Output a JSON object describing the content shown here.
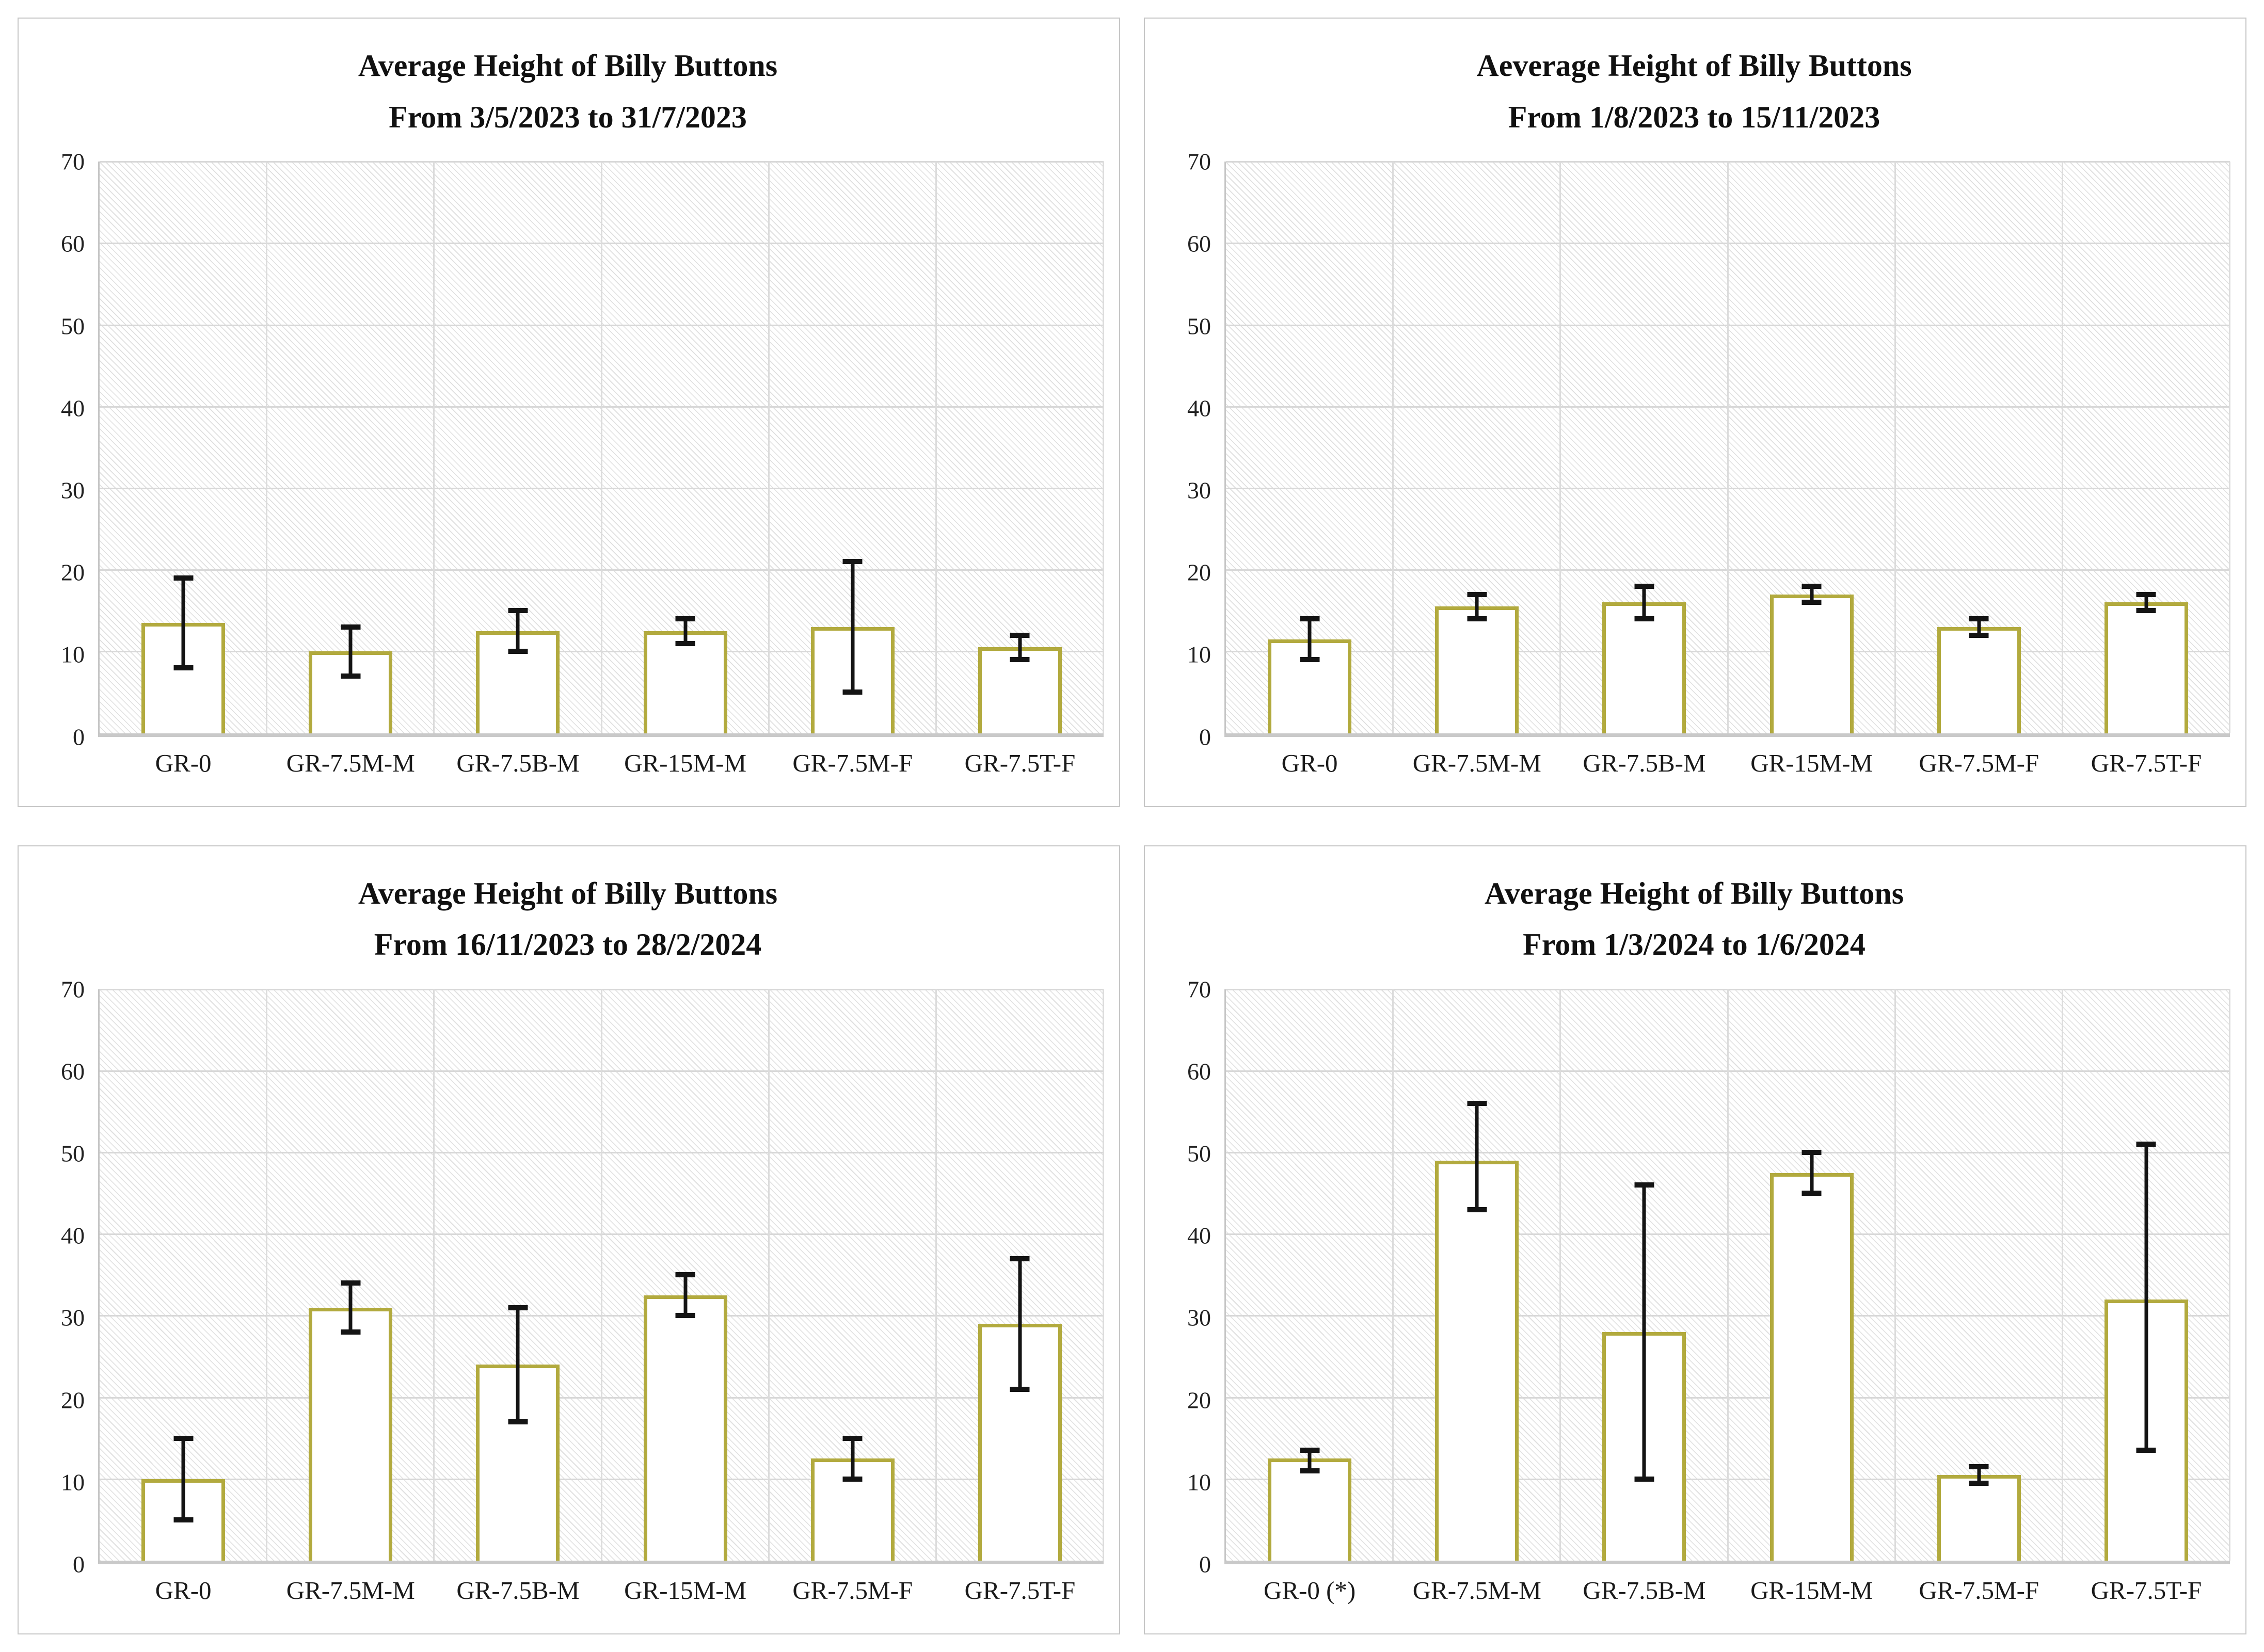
{
  "page": {
    "background": "#ffffff",
    "layout": "2x2-chart-grid"
  },
  "style": {
    "bar_fill": "#ffffff",
    "bar_border": "#b2aa3e",
    "error_bar_color": "#141414",
    "gridline_color": "#d8d8d8",
    "axis_color": "#c9c9c9",
    "panel_border_color": "#c6c6c6",
    "plot_pattern": "light-gray-diagonal-dotted-hatch",
    "text_color": "#161616"
  },
  "chart_data": [
    {
      "type": "bar",
      "title": [
        "Average Height of Billy Buttons",
        "From 3/5/2023 to 31/7/2023"
      ],
      "categories": [
        "GR-0",
        "GR-7.5M-M",
        "GR-7.5B-M",
        "GR-15M-M",
        "GR-7.5M-F",
        "GR-7.5T-F"
      ],
      "values": [
        13.5,
        10,
        12.5,
        12.5,
        13,
        10.5
      ],
      "error_high": [
        19,
        13,
        15,
        14,
        21,
        12
      ],
      "error_low": [
        8,
        7,
        10,
        11,
        5,
        9
      ],
      "ylim": [
        0,
        70
      ],
      "ytick_step": 10,
      "grid": true,
      "legend": false,
      "xlabel": "",
      "ylabel": ""
    },
    {
      "type": "bar",
      "title": [
        "Aeverage Height of Billy Buttons",
        "From 1/8/2023 to 15/11/2023"
      ],
      "categories": [
        "GR-0",
        "GR-7.5M-M",
        "GR-7.5B-M",
        "GR-15M-M",
        "GR-7.5M-F",
        "GR-7.5T-F"
      ],
      "values": [
        11.5,
        15.5,
        16,
        17,
        13,
        16
      ],
      "error_high": [
        14,
        17,
        18,
        18,
        14,
        17
      ],
      "error_low": [
        9,
        14,
        14,
        16,
        12,
        15
      ],
      "ylim": [
        0,
        70
      ],
      "ytick_step": 10,
      "grid": true,
      "legend": false,
      "xlabel": "",
      "ylabel": ""
    },
    {
      "type": "bar",
      "title": [
        "Average Height of Billy Buttons",
        "From 16/11/2023 to 28/2/2024"
      ],
      "categories": [
        "GR-0",
        "GR-7.5M-M",
        "GR-7.5B-M",
        "GR-15M-M",
        "GR-7.5M-F",
        "GR-7.5T-F"
      ],
      "values": [
        10,
        31,
        24,
        32.5,
        12.5,
        29
      ],
      "error_high": [
        15,
        34,
        31,
        35,
        15,
        37
      ],
      "error_low": [
        5,
        28,
        17,
        30,
        10,
        21
      ],
      "ylim": [
        0,
        70
      ],
      "ytick_step": 10,
      "grid": true,
      "legend": false,
      "xlabel": "",
      "ylabel": ""
    },
    {
      "type": "bar",
      "title": [
        "Average Height of Billy Buttons",
        "From 1/3/2024 to 1/6/2024"
      ],
      "categories": [
        "GR-0 (*)",
        "GR-7.5M-M",
        "GR-7.5B-M",
        "GR-15M-M",
        "GR-7.5M-F",
        "GR-7.5T-F"
      ],
      "values": [
        12.5,
        49,
        28,
        47.5,
        10.5,
        32
      ],
      "error_high": [
        13.5,
        56,
        46,
        50,
        11.5,
        51
      ],
      "error_low": [
        11,
        43,
        10,
        45,
        9.5,
        13.5
      ],
      "ylim": [
        0,
        70
      ],
      "ytick_step": 10,
      "grid": true,
      "legend": false,
      "xlabel": "",
      "ylabel": ""
    }
  ]
}
